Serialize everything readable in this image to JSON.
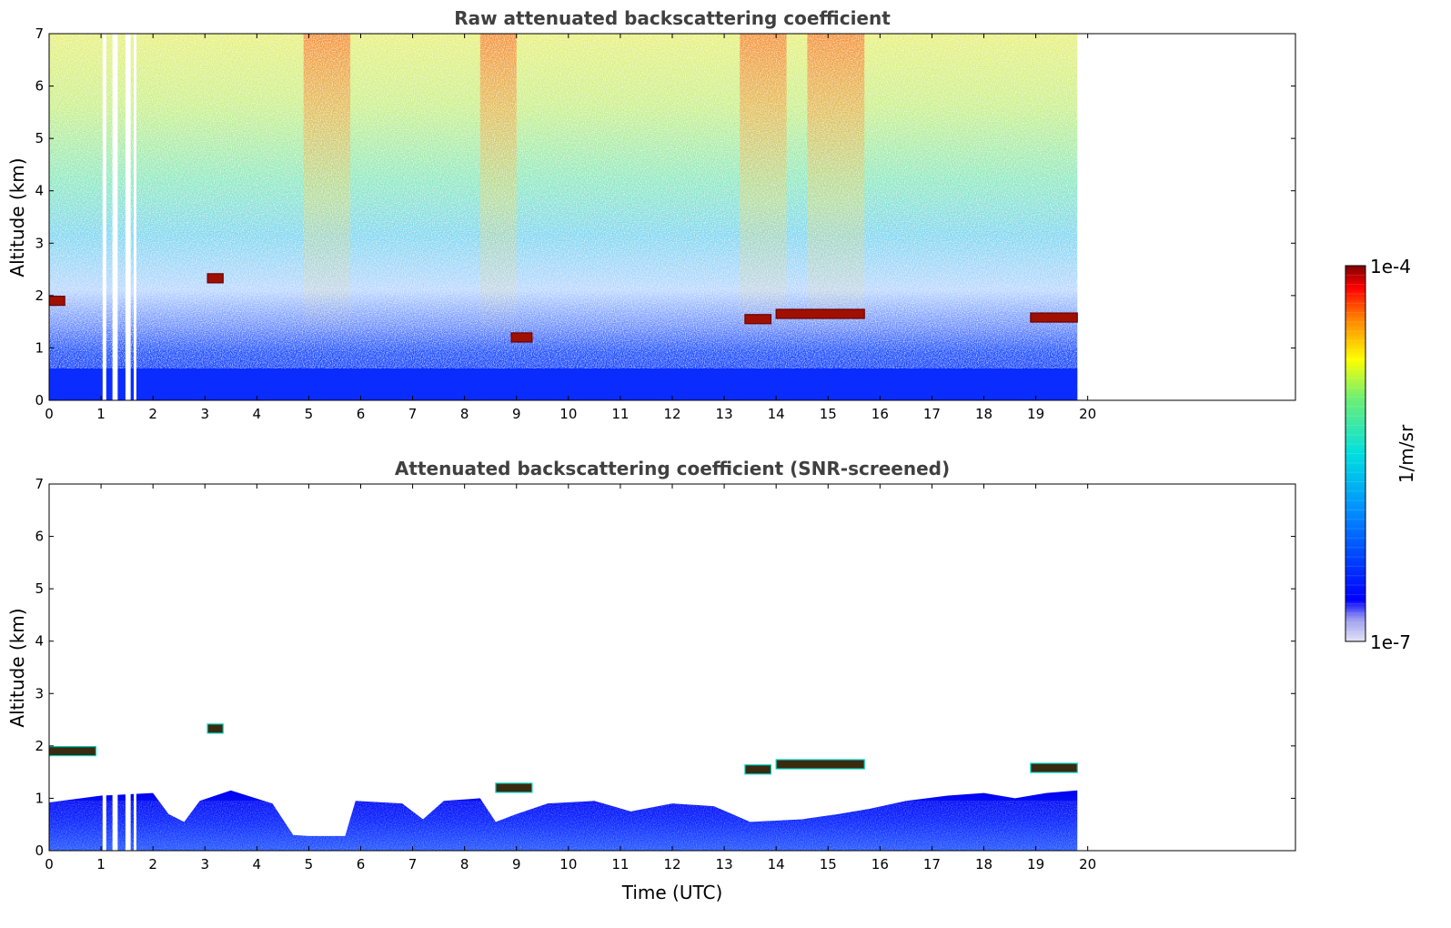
{
  "chart_data": [
    {
      "type": "heatmap",
      "title": "Raw attenuated backscattering coefficient",
      "xlabel": "",
      "ylabel": "Altitude (km)",
      "xlim": [
        0,
        24
      ],
      "ylim": [
        0,
        7
      ],
      "xticks": [
        "0",
        "1",
        "2",
        "3",
        "4",
        "5",
        "6",
        "7",
        "8",
        "9",
        "10",
        "11",
        "12",
        "13",
        "14",
        "15",
        "16",
        "17",
        "18",
        "19",
        "20"
      ],
      "yticks": [
        "0",
        "1",
        "2",
        "3",
        "4",
        "5",
        "6",
        "7"
      ],
      "data_extent_x": [
        0,
        19.8
      ],
      "dropout_intervals": [
        [
          1.03,
          1.1
        ],
        [
          1.22,
          1.32
        ],
        [
          1.47,
          1.57
        ],
        [
          1.63,
          1.68
        ]
      ],
      "cloud_layers": [
        {
          "x": [
            0.0,
            0.3
          ],
          "altitude": 1.9
        },
        {
          "x": [
            3.05,
            3.35
          ],
          "altitude": 2.33
        },
        {
          "x": [
            8.9,
            9.3
          ],
          "altitude": 1.2
        },
        {
          "x": [
            13.4,
            13.9
          ],
          "altitude": 1.55
        },
        {
          "x": [
            14.0,
            15.7
          ],
          "altitude": 1.65
        },
        {
          "x": [
            18.9,
            19.8
          ],
          "altitude": 1.58
        }
      ]
    },
    {
      "type": "heatmap",
      "title": "Attenuated backscattering coefficient (SNR-screened)",
      "xlabel": "Time (UTC)",
      "ylabel": "Altitude (km)",
      "xlim": [
        0,
        24
      ],
      "ylim": [
        0,
        7
      ],
      "xticks": [
        "0",
        "1",
        "2",
        "3",
        "4",
        "5",
        "6",
        "7",
        "8",
        "9",
        "10",
        "11",
        "12",
        "13",
        "14",
        "15",
        "16",
        "17",
        "18",
        "19",
        "20"
      ],
      "yticks": [
        "0",
        "1",
        "2",
        "3",
        "4",
        "5",
        "6",
        "7"
      ],
      "data_extent_x": [
        0,
        19.8
      ],
      "boundary_layer_top_km": [
        [
          0.0,
          0.92
        ],
        [
          1.0,
          1.05
        ],
        [
          2.0,
          1.1
        ],
        [
          2.3,
          0.7
        ],
        [
          2.6,
          0.55
        ],
        [
          2.9,
          0.95
        ],
        [
          3.5,
          1.15
        ],
        [
          4.3,
          0.9
        ],
        [
          4.7,
          0.3
        ],
        [
          5.0,
          0.28
        ],
        [
          5.7,
          0.28
        ],
        [
          5.9,
          0.95
        ],
        [
          6.8,
          0.9
        ],
        [
          7.2,
          0.6
        ],
        [
          7.6,
          0.95
        ],
        [
          8.3,
          1.0
        ],
        [
          8.6,
          0.55
        ],
        [
          9.0,
          0.7
        ],
        [
          9.6,
          0.9
        ],
        [
          10.5,
          0.95
        ],
        [
          11.2,
          0.75
        ],
        [
          12.0,
          0.9
        ],
        [
          12.8,
          0.85
        ],
        [
          13.5,
          0.55
        ],
        [
          14.5,
          0.6
        ],
        [
          15.2,
          0.7
        ],
        [
          15.8,
          0.8
        ],
        [
          16.5,
          0.95
        ],
        [
          17.3,
          1.05
        ],
        [
          18.0,
          1.1
        ],
        [
          18.6,
          1.0
        ],
        [
          19.2,
          1.1
        ],
        [
          19.8,
          1.15
        ]
      ],
      "cloud_layers": [
        {
          "x": [
            0.0,
            0.9
          ],
          "altitude": 1.9
        },
        {
          "x": [
            3.05,
            3.35
          ],
          "altitude": 2.33
        },
        {
          "x": [
            8.6,
            9.3
          ],
          "altitude": 1.2
        },
        {
          "x": [
            13.4,
            13.9
          ],
          "altitude": 1.55
        },
        {
          "x": [
            14.0,
            15.7
          ],
          "altitude": 1.65
        },
        {
          "x": [
            18.9,
            19.8
          ],
          "altitude": 1.58
        }
      ]
    }
  ],
  "colorbar": {
    "label": "1/m/sr",
    "min_label": "1e-7",
    "max_label": "1e-4",
    "colormap": "jet"
  }
}
